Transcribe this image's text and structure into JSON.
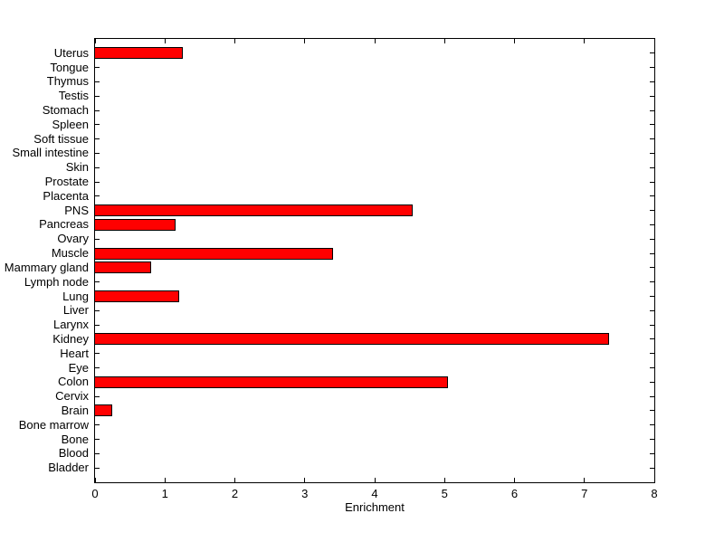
{
  "chart_data": {
    "type": "bar",
    "orientation": "horizontal",
    "title": "",
    "xlabel": "Enrichment",
    "ylabel": "",
    "xlim": [
      0,
      8
    ],
    "xticks": [
      0,
      1,
      2,
      3,
      4,
      5,
      6,
      7,
      8
    ],
    "grid": false,
    "legend": "none",
    "bar_color": "#ff0000",
    "bar_edge_color": "#000000",
    "axis_color": "#000000",
    "background_color": "#ffffff",
    "categories": [
      "Uterus",
      "Tongue",
      "Thymus",
      "Testis",
      "Stomach",
      "Spleen",
      "Soft tissue",
      "Small intestine",
      "Skin",
      "Prostate",
      "Placenta",
      "PNS",
      "Pancreas",
      "Ovary",
      "Muscle",
      "Mammary gland",
      "Lymph node",
      "Lung",
      "Liver",
      "Larynx",
      "Kidney",
      "Heart",
      "Eye",
      "Colon",
      "Cervix",
      "Brain",
      "Bone marrow",
      "Bone",
      "Blood",
      "Bladder"
    ],
    "values": [
      1.25,
      0,
      0,
      0,
      0,
      0,
      0,
      0,
      0,
      0,
      0,
      4.55,
      1.15,
      0,
      3.4,
      0.8,
      0,
      1.2,
      0,
      0,
      7.35,
      0,
      0,
      5.05,
      0,
      0.25,
      0,
      0,
      0,
      0
    ]
  }
}
